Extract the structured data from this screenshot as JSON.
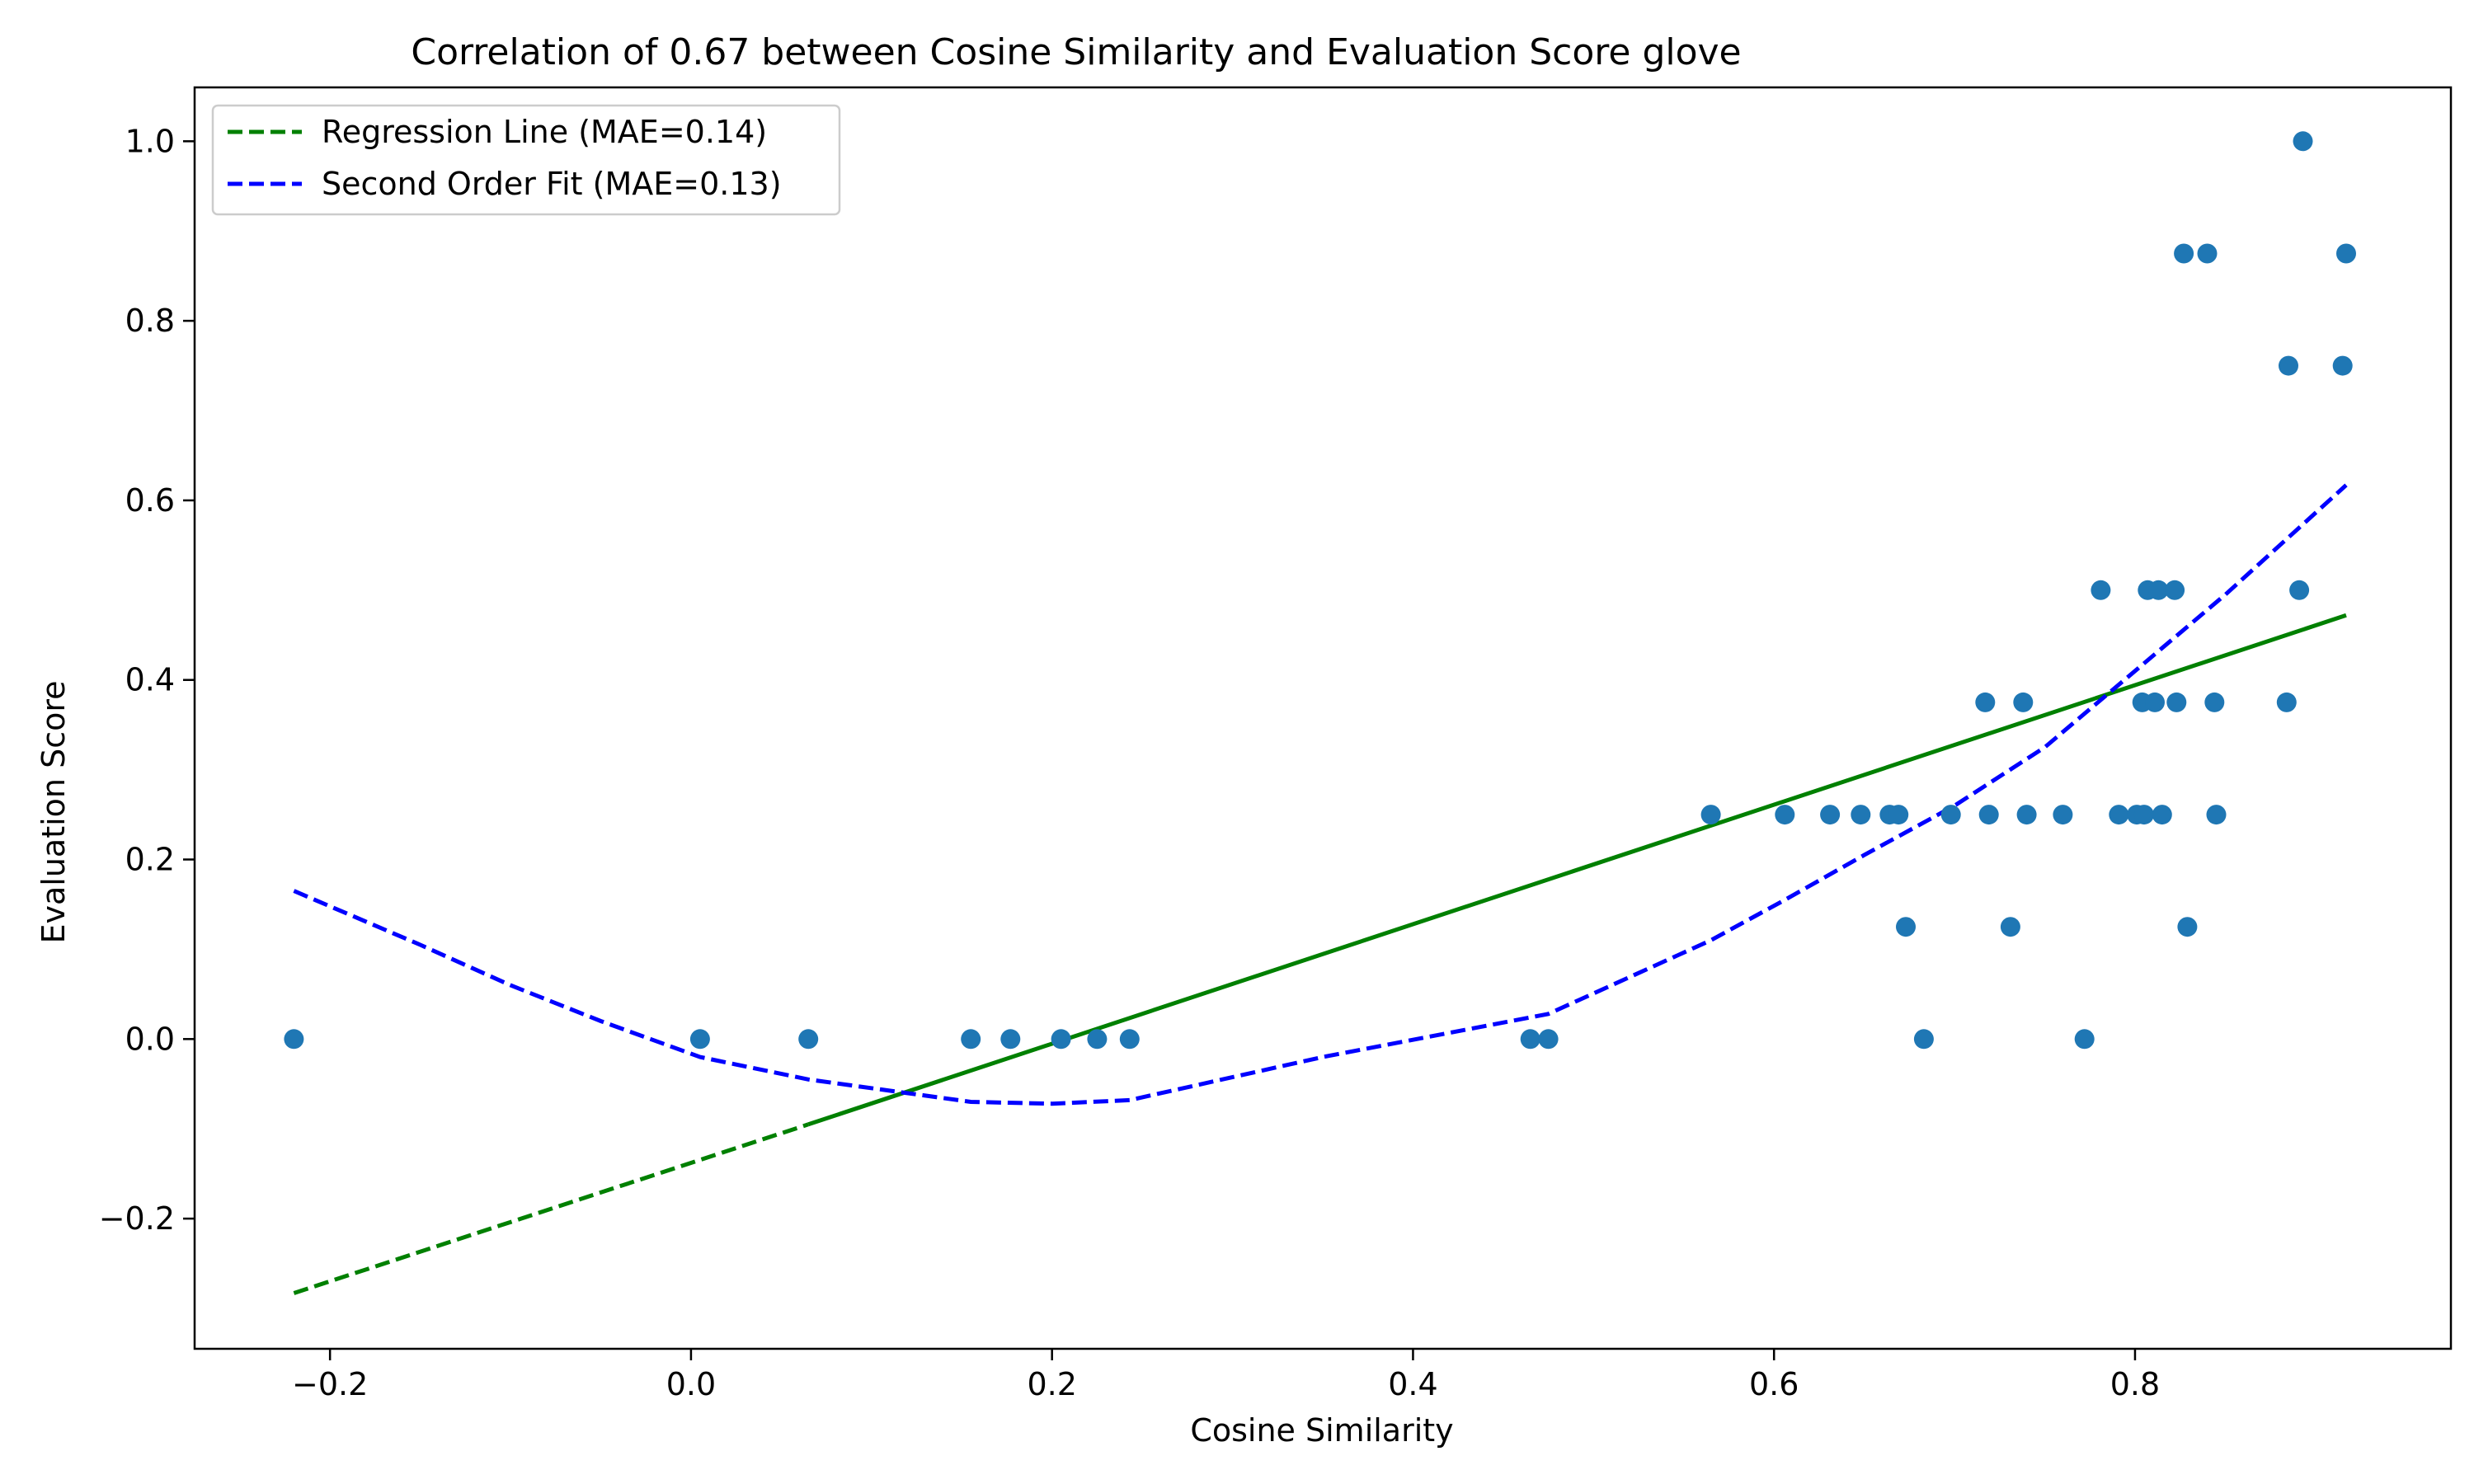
{
  "chart_data": {
    "type": "scatter",
    "title": "Correlation of 0.67 between Cosine Similarity and Evaluation Score glove",
    "xlabel": "Cosine Similarity",
    "ylabel": "Evaluation Score",
    "xlim": [
      -0.275,
      0.975
    ],
    "ylim": [
      -0.345,
      1.06
    ],
    "x_ticks": [
      -0.2,
      0.0,
      0.2,
      0.4,
      0.6,
      0.8
    ],
    "x_tick_labels": [
      "−0.2",
      "0.0",
      "0.2",
      "0.4",
      "0.6",
      "0.8"
    ],
    "y_ticks": [
      -0.2,
      0.0,
      0.2,
      0.4,
      0.6,
      0.8,
      1.0
    ],
    "y_tick_labels": [
      "−0.2",
      "0.0",
      "0.2",
      "0.4",
      "0.6",
      "0.8",
      "1.0"
    ],
    "grid": false,
    "legend_placement": "top-left",
    "legend": [
      {
        "label": "Regression Line (MAE=0.14)",
        "color": "#008000",
        "style": "dashed"
      },
      {
        "label": "Second Order Fit (MAE=0.13)",
        "color": "#0000ff",
        "style": "dashed"
      }
    ],
    "points_color": "#1f77b4",
    "points": [
      [
        -0.22,
        0.0
      ],
      [
        0.005,
        0.0
      ],
      [
        0.065,
        0.0
      ],
      [
        0.155,
        0.0
      ],
      [
        0.177,
        0.0
      ],
      [
        0.205,
        0.0
      ],
      [
        0.225,
        0.0
      ],
      [
        0.243,
        0.0
      ],
      [
        0.465,
        0.0
      ],
      [
        0.475,
        0.0
      ],
      [
        0.565,
        0.25
      ],
      [
        0.606,
        0.25
      ],
      [
        0.631,
        0.25
      ],
      [
        0.648,
        0.25
      ],
      [
        0.664,
        0.25
      ],
      [
        0.669,
        0.25
      ],
      [
        0.673,
        0.125
      ],
      [
        0.683,
        0.0
      ],
      [
        0.698,
        0.25
      ],
      [
        0.717,
        0.375
      ],
      [
        0.719,
        0.25
      ],
      [
        0.731,
        0.125
      ],
      [
        0.738,
        0.375
      ],
      [
        0.74,
        0.25
      ],
      [
        0.76,
        0.25
      ],
      [
        0.772,
        0.0
      ],
      [
        0.781,
        0.5
      ],
      [
        0.791,
        0.25
      ],
      [
        0.801,
        0.25
      ],
      [
        0.804,
        0.375
      ],
      [
        0.805,
        0.25
      ],
      [
        0.807,
        0.5
      ],
      [
        0.811,
        0.375
      ],
      [
        0.813,
        0.5
      ],
      [
        0.815,
        0.25
      ],
      [
        0.822,
        0.5
      ],
      [
        0.823,
        0.375
      ],
      [
        0.827,
        0.875
      ],
      [
        0.829,
        0.125
      ],
      [
        0.84,
        0.875
      ],
      [
        0.844,
        0.375
      ],
      [
        0.845,
        0.25
      ],
      [
        0.884,
        0.375
      ],
      [
        0.885,
        0.75
      ],
      [
        0.891,
        0.5
      ],
      [
        0.893,
        1.0
      ],
      [
        0.915,
        0.75
      ],
      [
        0.917,
        0.875
      ]
    ],
    "series": [
      {
        "color": "#008000",
        "style": "dashed",
        "x": [
          -0.22,
          0.065
        ],
        "y": [
          -0.283,
          -0.095
        ]
      },
      {
        "color": "#008000",
        "style": "solid",
        "x": [
          0.065,
          0.917
        ],
        "y": [
          -0.095,
          0.472
        ]
      },
      {
        "color": "#0000ff",
        "style": "dashed",
        "x": [
          -0.22,
          -0.15,
          -0.1,
          -0.05,
          0.005,
          0.065,
          0.155,
          0.2,
          0.243,
          0.35,
          0.475,
          0.565,
          0.606,
          0.65,
          0.7,
          0.75,
          0.8,
          0.85,
          0.917
        ],
        "y": [
          0.165,
          0.105,
          0.06,
          0.02,
          -0.02,
          -0.045,
          -0.07,
          -0.072,
          -0.068,
          -0.02,
          0.028,
          0.11,
          0.155,
          0.205,
          0.26,
          0.325,
          0.41,
          0.495,
          0.617
        ]
      }
    ]
  }
}
